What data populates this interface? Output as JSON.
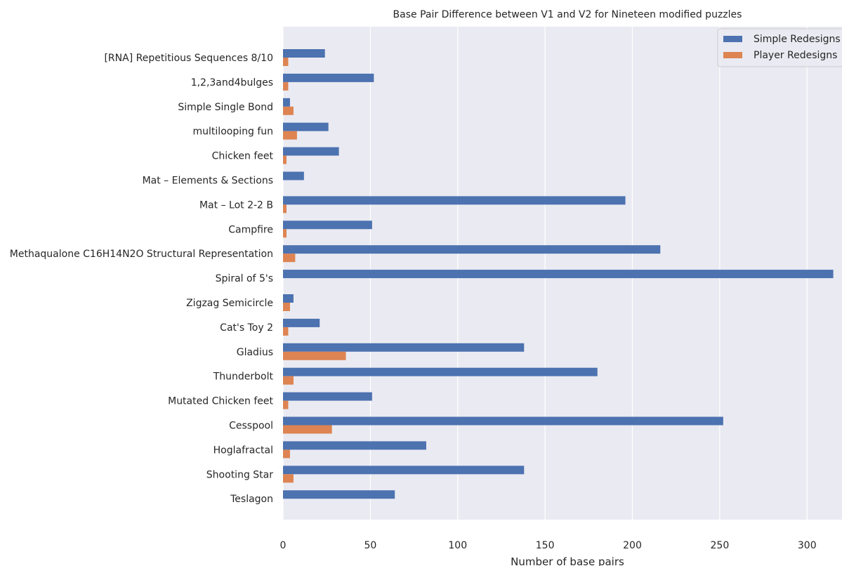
{
  "chart_data": {
    "type": "bar",
    "orientation": "horizontal",
    "title": "Base Pair Difference between V1 and V2 for Nineteen modified puzzles",
    "xlabel": "Number of base pairs",
    "ylabel": "",
    "xlim": [
      0,
      320
    ],
    "xticks": [
      0,
      50,
      100,
      150,
      200,
      250,
      300
    ],
    "grid": true,
    "legend_position": "top-right",
    "categories": [
      "[RNA] Repetitious Sequences 8/10",
      "1,2,3and4bulges",
      "Simple Single Bond",
      "multilooping fun",
      "Chicken feet",
      "Mat – Elements & Sections",
      "Mat – Lot 2-2 B",
      "Campfire",
      "Methaqualone C16H14N2O Structural Representation",
      "Spiral of 5's",
      "Zigzag Semicircle",
      "Cat's Toy 2",
      "Gladius",
      "Thunderbolt",
      "Mutated Chicken feet",
      "Cesspool",
      "Hoglafractal",
      "Shooting Star",
      "Teslagon"
    ],
    "series": [
      {
        "name": "Simple Redesigns",
        "color": "#4C72B0",
        "values": [
          24,
          52,
          4,
          26,
          32,
          12,
          196,
          51,
          216,
          315,
          6,
          21,
          138,
          180,
          51,
          252,
          82,
          138,
          64
        ]
      },
      {
        "name": "Player Redesigns",
        "color": "#DD8452",
        "values": [
          3,
          3,
          6,
          8,
          2,
          0,
          2,
          2,
          7,
          0,
          4,
          3,
          36,
          6,
          3,
          28,
          4,
          6,
          0
        ]
      }
    ]
  }
}
